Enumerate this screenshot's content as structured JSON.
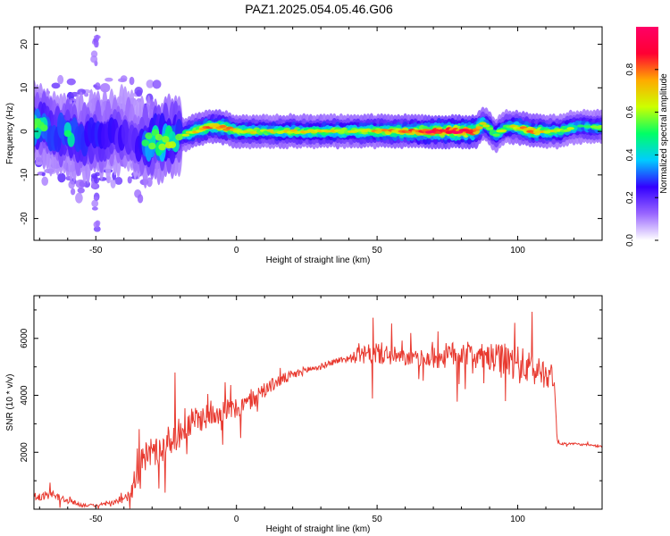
{
  "title": "PAZ1.2025.054.05.46.G06",
  "chart_data": [
    {
      "type": "heatmap",
      "xlabel": "Height of straight line (km)",
      "ylabel": "Frequency (Hz)",
      "xlim": [
        -72,
        130
      ],
      "ylim": [
        -25,
        24
      ],
      "xticks": [
        -50,
        0,
        50,
        100
      ],
      "yticks": [
        -20,
        -10,
        0,
        10,
        20
      ],
      "ridge": {
        "x": [
          -70,
          -65,
          -60,
          -55,
          -50,
          -45,
          -40,
          -35,
          -30,
          -25,
          -20,
          -15,
          -10,
          -5,
          0,
          5,
          10,
          20,
          30,
          40,
          50,
          60,
          70,
          80,
          85,
          88,
          92,
          96,
          100,
          105,
          110,
          115,
          120,
          125,
          130
        ],
        "frequency": [
          1,
          0,
          -1,
          -2,
          -1,
          -1,
          0,
          -2,
          -2,
          -2,
          -1,
          0,
          1,
          1,
          0,
          0,
          0,
          0,
          0,
          0,
          0,
          0,
          0,
          0,
          0,
          2,
          -1,
          1,
          1,
          0,
          0,
          0,
          1,
          1,
          1
        ],
        "amplitude": [
          0.45,
          0.4,
          0.45,
          0.4,
          0.4,
          0.35,
          0.3,
          0.3,
          0.55,
          0.55,
          0.45,
          0.65,
          0.7,
          0.75,
          0.6,
          0.6,
          0.55,
          0.6,
          0.6,
          0.6,
          0.65,
          0.7,
          0.9,
          0.95,
          0.85,
          0.6,
          0.5,
          0.55,
          0.6,
          0.75,
          0.6,
          0.55,
          0.5,
          0.5,
          0.5
        ]
      },
      "colorbar": {
        "label": "Normalized spectral amplitude",
        "range": [
          0,
          1
        ],
        "ticks": [
          0.0,
          0.2,
          0.4,
          0.6,
          0.8
        ],
        "colors": [
          "#ffffff",
          "#9966ff",
          "#3300ff",
          "#00ccff",
          "#00ff66",
          "#ccff00",
          "#ffaa00",
          "#ff0033",
          "#ff0066"
        ]
      }
    },
    {
      "type": "line",
      "xlabel": "Height of straight line (km)",
      "ylabel": "SNR (10 * v/v)",
      "xlim": [
        -72,
        130
      ],
      "ylim": [
        0,
        7500
      ],
      "xticks": [
        -50,
        0,
        50,
        100
      ],
      "yticks": [
        2000,
        4000,
        6000
      ],
      "color": "#e8392f",
      "series": [
        {
          "x": [
            -72,
            -65,
            -60,
            -55,
            -50,
            -45,
            -40,
            -38,
            -35,
            -32,
            -30,
            -27,
            -25,
            -20,
            -15,
            -10,
            -5,
            0,
            5,
            10,
            15,
            20,
            25,
            30,
            35,
            40,
            45,
            50,
            55,
            60,
            65,
            70,
            75,
            80,
            85,
            90,
            95,
            100,
            105,
            110,
            113,
            114,
            115,
            120,
            125,
            130
          ],
          "y": [
            400,
            500,
            300,
            150,
            120,
            200,
            300,
            600,
            1400,
            1900,
            2100,
            2000,
            2300,
            2700,
            3100,
            3300,
            3500,
            3500,
            3800,
            4200,
            4500,
            4700,
            4900,
            5000,
            5200,
            5300,
            5400,
            5500,
            5400,
            5300,
            5300,
            5300,
            5400,
            5500,
            5400,
            5300,
            5200,
            5100,
            4900,
            4800,
            4600,
            2400,
            2300,
            2300,
            2250,
            2200
          ],
          "noise": [
            250,
            300,
            250,
            150,
            100,
            150,
            300,
            600,
            1200,
            1300,
            1300,
            1300,
            1200,
            1200,
            1100,
            1000,
            900,
            800,
            700,
            600,
            500,
            400,
            300,
            250,
            250,
            300,
            700,
            900,
            800,
            600,
            600,
            900,
            1000,
            1000,
            900,
            1100,
            1400,
            1500,
            1300,
            1200,
            800,
            80,
            80,
            80,
            80,
            80
          ]
        }
      ]
    }
  ]
}
